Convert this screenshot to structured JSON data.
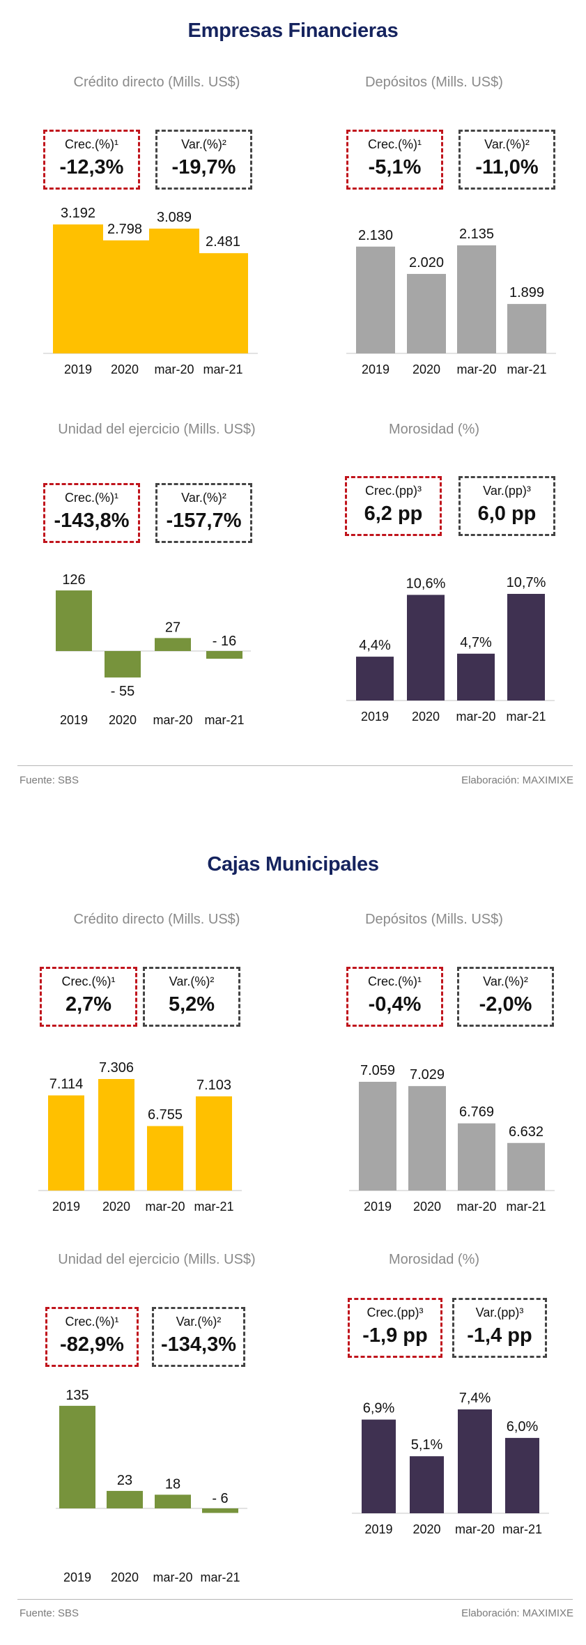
{
  "footer": {
    "source": "Fuente: SBS",
    "credit": "Elaboración: MAXIMIXE"
  },
  "sections": [
    {
      "title": "Empresas Financieras",
      "panels": [
        {
          "title": "Crédito directo (Mills. US$)",
          "kpis": [
            {
              "label": "Crec.(%)¹",
              "value": "-12,3%"
            },
            {
              "label": "Var.(%)²",
              "value": "-19,7%"
            }
          ]
        },
        {
          "title": "Depósitos (Mills. US$)",
          "kpis": [
            {
              "label": "Crec.(%)¹",
              "value": "-5,1%"
            },
            {
              "label": "Var.(%)²",
              "value": "-11,0%"
            }
          ]
        },
        {
          "title": "Unidad del ejercicio (Mills. US$)",
          "kpis": [
            {
              "label": "Crec.(%)¹",
              "value": "-143,8%"
            },
            {
              "label": "Var.(%)²",
              "value": "-157,7%"
            }
          ]
        },
        {
          "title": "Morosidad (%)",
          "kpis": [
            {
              "label": "Crec.(pp)³",
              "value": "6,2 pp"
            },
            {
              "label": "Var.(pp)³",
              "value": "6,0 pp"
            }
          ]
        }
      ]
    },
    {
      "title": "Cajas Municipales",
      "panels": [
        {
          "title": "Crédito directo (Mills. US$)",
          "kpis": [
            {
              "label": "Crec.(%)¹",
              "value": "2,7%"
            },
            {
              "label": "Var.(%)²",
              "value": "5,2%"
            }
          ]
        },
        {
          "title": "Depósitos (Mills. US$)",
          "kpis": [
            {
              "label": "Crec.(%)¹",
              "value": "-0,4%"
            },
            {
              "label": "Var.(%)²",
              "value": "-2,0%"
            }
          ]
        },
        {
          "title": "Unidad del ejercicio (Mills. US$)",
          "kpis": [
            {
              "label": "Crec.(%)¹",
              "value": "-82,9%"
            },
            {
              "label": "Var.(%)²",
              "value": "-134,3%"
            }
          ]
        },
        {
          "title": "Morosidad (%)",
          "kpis": [
            {
              "label": "Crec.(pp)³",
              "value": "-1,9 pp"
            },
            {
              "label": "Var.(pp)³",
              "value": "-1,4 pp"
            }
          ]
        }
      ]
    }
  ],
  "colors": {
    "credit": "#ffc000",
    "deposits": "#a6a6a6",
    "result": "#77933c",
    "npl": "#3f3151",
    "title": "#15235e",
    "red_border": "#c0141c"
  },
  "chart_data": [
    {
      "type": "bar",
      "categories": [
        "2019",
        "2020",
        "mar-20",
        "mar-21"
      ],
      "values": [
        3192,
        2798,
        3089,
        2481
      ],
      "labels": [
        "3.192",
        "2.798",
        "3.089",
        "2.481"
      ]
    },
    {
      "type": "bar",
      "categories": [
        "2019",
        "2020",
        "mar-20",
        "mar-21"
      ],
      "values": [
        2130,
        2020,
        2135,
        1899
      ],
      "labels": [
        "2.130",
        "2.020",
        "2.135",
        "1.899"
      ]
    },
    {
      "type": "bar",
      "categories": [
        "2019",
        "2020",
        "mar-20",
        "mar-21"
      ],
      "values": [
        126,
        -55,
        27,
        -16
      ],
      "labels": [
        "126",
        "- 55",
        "27",
        "- 16"
      ]
    },
    {
      "type": "bar",
      "categories": [
        "2019",
        "2020",
        "mar-20",
        "mar-21"
      ],
      "values": [
        4.4,
        10.6,
        4.7,
        10.7
      ],
      "labels": [
        "4,4%",
        "10,6%",
        "4,7%",
        "10,7%"
      ]
    },
    {
      "type": "bar",
      "categories": [
        "2019",
        "2020",
        "mar-20",
        "mar-21"
      ],
      "values": [
        7114,
        7306,
        6755,
        7103
      ],
      "labels": [
        "7.114",
        "7.306",
        "6.755",
        "7.103"
      ]
    },
    {
      "type": "bar",
      "categories": [
        "2019",
        "2020",
        "mar-20",
        "mar-21"
      ],
      "values": [
        7059,
        7029,
        6769,
        6632
      ],
      "labels": [
        "7.059",
        "7.029",
        "6.769",
        "6.632"
      ]
    },
    {
      "type": "bar",
      "categories": [
        "2019",
        "2020",
        "mar-20",
        "mar-21"
      ],
      "values": [
        135,
        23,
        18,
        -6
      ],
      "labels": [
        "135",
        "23",
        "18",
        "- 6"
      ]
    },
    {
      "type": "bar",
      "categories": [
        "2019",
        "2020",
        "mar-20",
        "mar-21"
      ],
      "values": [
        6.9,
        5.1,
        7.4,
        6.0
      ],
      "labels": [
        "6,9%",
        "5,1%",
        "7,4%",
        "6,0%"
      ]
    }
  ]
}
